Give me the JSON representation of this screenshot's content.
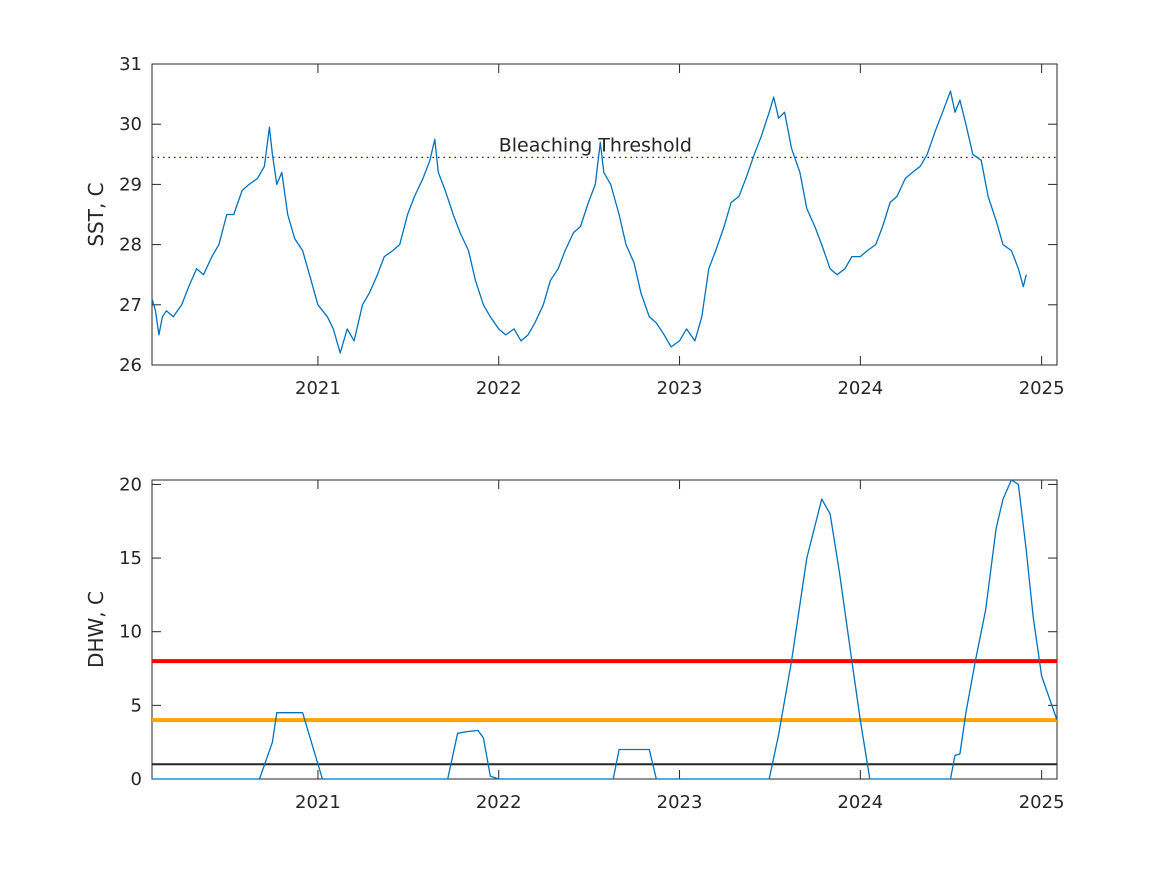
{
  "chart_data": [
    {
      "type": "line",
      "ylabel": "SST, C",
      "xlim": [
        "2020-02-01",
        "2025-02-01"
      ],
      "ylim": [
        26,
        31
      ],
      "yticks": [
        26,
        27,
        28,
        29,
        30,
        31
      ],
      "xticks": [
        "2021",
        "2022",
        "2023",
        "2024",
        "2025"
      ],
      "grid": false,
      "colors": {
        "series": "#0072BD",
        "threshold": "#00008B"
      },
      "annotations": [
        {
          "text": "Bleaching Threshold",
          "x": "2022-01-01",
          "y": 29.45
        }
      ],
      "reference_lines": [
        {
          "y": 29.45,
          "style": "dotted",
          "color": "#00008B"
        }
      ],
      "series": [
        {
          "points": [
            [
              "2020-02-01",
              27.1
            ],
            [
              "2020-02-08",
              26.9
            ],
            [
              "2020-02-15",
              26.5
            ],
            [
              "2020-02-22",
              26.8
            ],
            [
              "2020-03-01",
              26.9
            ],
            [
              "2020-03-15",
              26.8
            ],
            [
              "2020-04-01",
              27.0
            ],
            [
              "2020-04-15",
              27.3
            ],
            [
              "2020-05-01",
              27.6
            ],
            [
              "2020-05-15",
              27.5
            ],
            [
              "2020-06-01",
              27.8
            ],
            [
              "2020-06-15",
              28.0
            ],
            [
              "2020-07-01",
              28.5
            ],
            [
              "2020-07-15",
              28.5
            ],
            [
              "2020-08-01",
              28.9
            ],
            [
              "2020-08-15",
              29.0
            ],
            [
              "2020-09-01",
              29.1
            ],
            [
              "2020-09-15",
              29.3
            ],
            [
              "2020-09-25",
              29.95
            ],
            [
              "2020-10-01",
              29.5
            ],
            [
              "2020-10-10",
              29.0
            ],
            [
              "2020-10-20",
              29.2
            ],
            [
              "2020-11-01",
              28.5
            ],
            [
              "2020-11-15",
              28.1
            ],
            [
              "2020-12-01",
              27.9
            ],
            [
              "2020-12-15",
              27.5
            ],
            [
              "2021-01-01",
              27.0
            ],
            [
              "2021-01-20",
              26.8
            ],
            [
              "2021-02-01",
              26.6
            ],
            [
              "2021-02-15",
              26.2
            ],
            [
              "2021-03-01",
              26.6
            ],
            [
              "2021-03-15",
              26.4
            ],
            [
              "2021-04-01",
              27.0
            ],
            [
              "2021-04-15",
              27.2
            ],
            [
              "2021-05-01",
              27.5
            ],
            [
              "2021-05-15",
              27.8
            ],
            [
              "2021-06-01",
              27.9
            ],
            [
              "2021-06-15",
              28.0
            ],
            [
              "2021-07-01",
              28.5
            ],
            [
              "2021-07-15",
              28.8
            ],
            [
              "2021-08-01",
              29.1
            ],
            [
              "2021-08-15",
              29.4
            ],
            [
              "2021-08-25",
              29.75
            ],
            [
              "2021-09-01",
              29.2
            ],
            [
              "2021-09-15",
              28.9
            ],
            [
              "2021-10-01",
              28.5
            ],
            [
              "2021-10-15",
              28.2
            ],
            [
              "2021-11-01",
              27.9
            ],
            [
              "2021-11-15",
              27.4
            ],
            [
              "2021-12-01",
              27.0
            ],
            [
              "2021-12-15",
              26.8
            ],
            [
              "2022-01-01",
              26.6
            ],
            [
              "2022-01-15",
              26.5
            ],
            [
              "2022-02-01",
              26.6
            ],
            [
              "2022-02-15",
              26.4
            ],
            [
              "2022-03-01",
              26.5
            ],
            [
              "2022-03-15",
              26.7
            ],
            [
              "2022-04-01",
              27.0
            ],
            [
              "2022-04-15",
              27.4
            ],
            [
              "2022-05-01",
              27.6
            ],
            [
              "2022-05-15",
              27.9
            ],
            [
              "2022-06-01",
              28.2
            ],
            [
              "2022-06-15",
              28.3
            ],
            [
              "2022-07-01",
              28.7
            ],
            [
              "2022-07-15",
              29.0
            ],
            [
              "2022-07-25",
              29.7
            ],
            [
              "2022-08-01",
              29.2
            ],
            [
              "2022-08-15",
              29.0
            ],
            [
              "2022-09-01",
              28.5
            ],
            [
              "2022-09-15",
              28.0
            ],
            [
              "2022-10-01",
              27.7
            ],
            [
              "2022-10-15",
              27.2
            ],
            [
              "2022-11-01",
              26.8
            ],
            [
              "2022-11-15",
              26.7
            ],
            [
              "2022-12-01",
              26.5
            ],
            [
              "2022-12-15",
              26.3
            ],
            [
              "2023-01-01",
              26.4
            ],
            [
              "2023-01-15",
              26.6
            ],
            [
              "2023-02-01",
              26.4
            ],
            [
              "2023-02-15",
              26.8
            ],
            [
              "2023-03-01",
              27.6
            ],
            [
              "2023-03-15",
              27.9
            ],
            [
              "2023-04-01",
              28.3
            ],
            [
              "2023-04-15",
              28.7
            ],
            [
              "2023-05-01",
              28.8
            ],
            [
              "2023-05-15",
              29.1
            ],
            [
              "2023-06-01",
              29.5
            ],
            [
              "2023-06-15",
              29.8
            ],
            [
              "2023-07-01",
              30.2
            ],
            [
              "2023-07-10",
              30.45
            ],
            [
              "2023-07-20",
              30.1
            ],
            [
              "2023-08-01",
              30.2
            ],
            [
              "2023-08-15",
              29.6
            ],
            [
              "2023-09-01",
              29.2
            ],
            [
              "2023-09-15",
              28.6
            ],
            [
              "2023-10-01",
              28.3
            ],
            [
              "2023-10-15",
              28.0
            ],
            [
              "2023-11-01",
              27.6
            ],
            [
              "2023-11-15",
              27.5
            ],
            [
              "2023-12-01",
              27.6
            ],
            [
              "2023-12-15",
              27.8
            ],
            [
              "2024-01-01",
              27.8
            ],
            [
              "2024-01-15",
              27.9
            ],
            [
              "2024-02-01",
              28.0
            ],
            [
              "2024-02-15",
              28.3
            ],
            [
              "2024-03-01",
              28.7
            ],
            [
              "2024-03-15",
              28.8
            ],
            [
              "2024-04-01",
              29.1
            ],
            [
              "2024-04-15",
              29.2
            ],
            [
              "2024-05-01",
              29.3
            ],
            [
              "2024-05-15",
              29.5
            ],
            [
              "2024-06-01",
              29.9
            ],
            [
              "2024-06-15",
              30.2
            ],
            [
              "2024-07-01",
              30.55
            ],
            [
              "2024-07-10",
              30.2
            ],
            [
              "2024-07-20",
              30.4
            ],
            [
              "2024-08-01",
              30.0
            ],
            [
              "2024-08-15",
              29.5
            ],
            [
              "2024-09-01",
              29.4
            ],
            [
              "2024-09-15",
              28.8
            ],
            [
              "2024-10-01",
              28.4
            ],
            [
              "2024-10-15",
              28.0
            ],
            [
              "2024-11-01",
              27.9
            ],
            [
              "2024-11-15",
              27.6
            ],
            [
              "2024-11-25",
              27.3
            ],
            [
              "2024-12-01",
              27.5
            ]
          ]
        }
      ]
    },
    {
      "type": "line",
      "ylabel": "DHW, C",
      "xlim": [
        "2020-02-01",
        "2025-02-01"
      ],
      "ylim": [
        0,
        20.3
      ],
      "yticks": [
        0,
        5,
        10,
        15,
        20
      ],
      "xticks": [
        "2021",
        "2022",
        "2023",
        "2024",
        "2025"
      ],
      "grid": false,
      "colors": {
        "series": "#0072BD"
      },
      "reference_lines": [
        {
          "y": 8,
          "color": "#FF0000",
          "style": "solid"
        },
        {
          "y": 4,
          "color": "#FFA500",
          "style": "solid"
        },
        {
          "y": 1,
          "color": "#262626",
          "style": "solid"
        }
      ],
      "series": [
        {
          "points": [
            [
              "2020-02-01",
              0
            ],
            [
              "2020-09-05",
              0
            ],
            [
              "2020-10-01",
              2.5
            ],
            [
              "2020-10-10",
              4.5
            ],
            [
              "2020-12-01",
              4.5
            ],
            [
              "2021-01-10",
              0
            ],
            [
              "2021-09-20",
              0
            ],
            [
              "2021-10-10",
              3.1
            ],
            [
              "2021-10-25",
              3.2
            ],
            [
              "2021-11-20",
              3.3
            ],
            [
              "2021-12-01",
              2.8
            ],
            [
              "2021-12-15",
              0.2
            ],
            [
              "2022-01-01",
              0
            ],
            [
              "2022-08-20",
              0
            ],
            [
              "2022-09-01",
              2.0
            ],
            [
              "2022-11-01",
              2.0
            ],
            [
              "2022-11-15",
              0
            ],
            [
              "2023-07-01",
              0
            ],
            [
              "2023-07-20",
              3.0
            ],
            [
              "2023-08-15",
              8.0
            ],
            [
              "2023-09-15",
              15.0
            ],
            [
              "2023-10-15",
              19.0
            ],
            [
              "2023-11-01",
              18.0
            ],
            [
              "2023-11-20",
              14.0
            ],
            [
              "2023-12-15",
              8.0
            ],
            [
              "2024-01-01",
              4.0
            ],
            [
              "2024-01-20",
              0
            ],
            [
              "2024-07-01",
              0
            ],
            [
              "2024-07-10",
              1.6
            ],
            [
              "2024-07-20",
              1.7
            ],
            [
              "2024-08-01",
              4.5
            ],
            [
              "2024-08-20",
              8.0
            ],
            [
              "2024-09-10",
              11.5
            ],
            [
              "2024-10-01",
              17.0
            ],
            [
              "2024-10-15",
              19.0
            ],
            [
              "2024-11-01",
              20.3
            ],
            [
              "2024-11-15",
              20.0
            ],
            [
              "2024-12-01",
              15.5
            ],
            [
              "2024-12-15",
              11.0
            ],
            [
              "2025-01-01",
              7.0
            ],
            [
              "2025-02-01",
              4.0
            ]
          ]
        }
      ]
    }
  ]
}
